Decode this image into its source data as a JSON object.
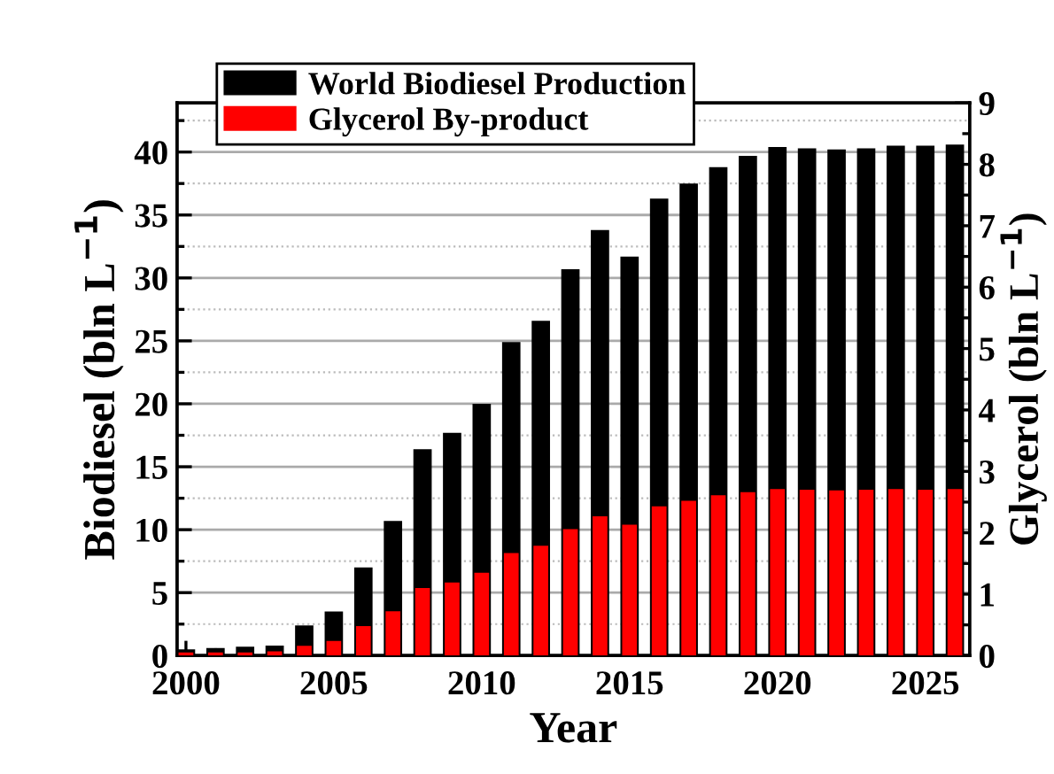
{
  "chart_data": {
    "type": "bar",
    "xlabel": "Year",
    "ylabel": "Biodiesel (bln L$^{−1}$)",
    "y2label": "Glycerol (bln L$^{−1}$)",
    "x": [
      2000,
      2001,
      2002,
      2003,
      2004,
      2005,
      2006,
      2007,
      2008,
      2009,
      2010,
      2011,
      2012,
      2013,
      2014,
      2015,
      2016,
      2017,
      2018,
      2019,
      2020,
      2021,
      2022,
      2023,
      2024,
      2025,
      2026
    ],
    "series": [
      {
        "name": "World Biodiesel Production",
        "color": "#000000",
        "values": [
          0.5,
          0.6,
          0.7,
          0.8,
          2.4,
          3.5,
          7.0,
          10.7,
          16.4,
          17.7,
          20.0,
          24.9,
          26.6,
          30.7,
          33.8,
          31.7,
          36.3,
          37.5,
          38.8,
          39.7,
          40.4,
          40.3,
          40.2,
          40.3,
          40.5,
          40.5,
          40.6
        ]
      },
      {
        "name": "Glycerol By-product",
        "color": "#ff0000",
        "axis": "y2",
        "values": [
          0.05,
          0.05,
          0.05,
          0.07,
          0.16,
          0.24,
          0.48,
          0.72,
          1.1,
          1.19,
          1.35,
          1.67,
          1.79,
          2.06,
          2.27,
          2.13,
          2.43,
          2.52,
          2.61,
          2.66,
          2.71,
          2.7,
          2.69,
          2.7,
          2.71,
          2.7,
          2.71
        ]
      }
    ],
    "xlim": [
      1999.7,
      2026.5
    ],
    "xticks": [
      2000,
      2005,
      2010,
      2015,
      2020,
      2025
    ],
    "ylim": [
      0,
      43.9
    ],
    "yticks": [
      0,
      5,
      10,
      15,
      20,
      25,
      30,
      35,
      40
    ],
    "y2lim": [
      0,
      9
    ],
    "y2ticks": [
      0,
      1,
      2,
      3,
      4,
      5,
      6,
      7,
      8,
      9
    ],
    "grid": "y",
    "legend": "top left"
  }
}
